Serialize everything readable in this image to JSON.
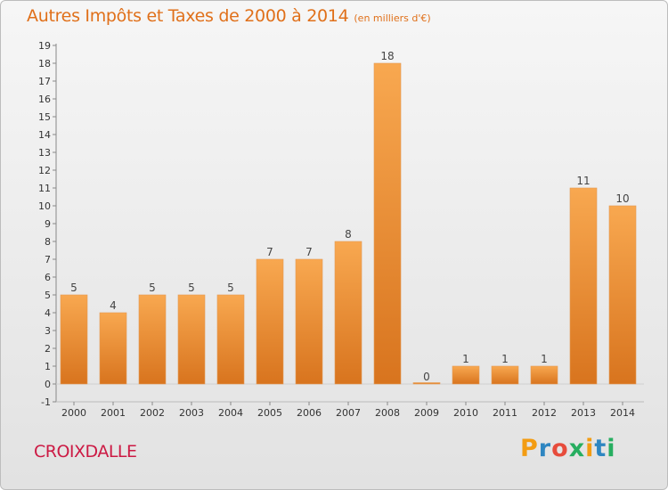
{
  "title": "Autres Impôts et Taxes de 2000 à 2014",
  "subtitle": "(en milliers d'€)",
  "commune": "CROIXDALLE",
  "brand": {
    "text": "Proxiti",
    "letter_colors": [
      "#f39c12",
      "#2e86c1",
      "#e74c3c",
      "#27ae60",
      "#f39c12",
      "#2e86c1",
      "#27ae60"
    ]
  },
  "chart_data": {
    "type": "bar",
    "categories": [
      "2000",
      "2001",
      "2002",
      "2003",
      "2004",
      "2005",
      "2006",
      "2007",
      "2008",
      "2009",
      "2010",
      "2011",
      "2012",
      "2013",
      "2014"
    ],
    "values": [
      5,
      4,
      5,
      5,
      5,
      7,
      7,
      8,
      18,
      0,
      1,
      1,
      1,
      11,
      10
    ],
    "data_labels": [
      "5",
      "4",
      "5",
      "5",
      "5",
      "7",
      "7",
      "8",
      "18",
      "0",
      "1",
      "1",
      "1",
      "11",
      "10"
    ],
    "y_ticks": [
      -1,
      0,
      1,
      2,
      3,
      4,
      5,
      6,
      7,
      8,
      9,
      10,
      11,
      12,
      13,
      14,
      15,
      16,
      17,
      18,
      19
    ],
    "ylim": [
      -1,
      19
    ],
    "grid": false,
    "bar_color": "#f0922e"
  }
}
